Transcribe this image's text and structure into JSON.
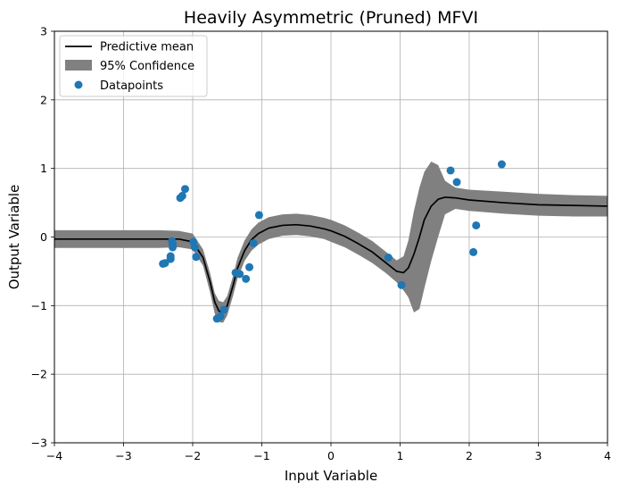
{
  "chart_data": {
    "type": "line",
    "title": "Heavily Asymmetric (Pruned) MFVI",
    "xlabel": "Input Variable",
    "ylabel": "Output Variable",
    "xlim": [
      -4,
      4
    ],
    "ylim": [
      -3,
      3
    ],
    "x_ticks": [
      -4,
      -3,
      -2,
      -1,
      0,
      1,
      2,
      3,
      4
    ],
    "y_ticks": [
      -3,
      -2,
      -1,
      0,
      1,
      2,
      3
    ],
    "x_tick_labels": [
      "−4",
      "−3",
      "−2",
      "−1",
      "0",
      "1",
      "2",
      "3",
      "4"
    ],
    "y_tick_labels": [
      "−3",
      "−2",
      "−1",
      "0",
      "1",
      "2",
      "3"
    ],
    "grid": true,
    "legend_position": "top-left",
    "legend": [
      "Predictive mean",
      "95% Confidence",
      "Datapoints"
    ],
    "series": [
      {
        "name": "Predictive mean",
        "kind": "line",
        "color": "#000000",
        "x": [
          -4.0,
          -3.0,
          -2.5,
          -2.2,
          -2.0,
          -1.85,
          -1.75,
          -1.68,
          -1.62,
          -1.56,
          -1.5,
          -1.42,
          -1.35,
          -1.25,
          -1.15,
          -1.05,
          -0.9,
          -0.7,
          -0.5,
          -0.3,
          -0.1,
          0.0,
          0.2,
          0.4,
          0.6,
          0.8,
          0.95,
          1.05,
          1.12,
          1.2,
          1.28,
          1.35,
          1.45,
          1.55,
          1.65,
          1.8,
          2.0,
          2.5,
          3.0,
          3.5,
          4.0
        ],
        "y": [
          -0.03,
          -0.03,
          -0.03,
          -0.03,
          -0.07,
          -0.3,
          -0.65,
          -0.95,
          -1.08,
          -1.1,
          -1.0,
          -0.72,
          -0.45,
          -0.2,
          -0.04,
          0.05,
          0.13,
          0.17,
          0.18,
          0.16,
          0.12,
          0.09,
          0.01,
          -0.1,
          -0.22,
          -0.38,
          -0.5,
          -0.52,
          -0.45,
          -0.25,
          0.0,
          0.25,
          0.45,
          0.55,
          0.58,
          0.57,
          0.54,
          0.5,
          0.47,
          0.46,
          0.45
        ]
      },
      {
        "name": "95% Confidence",
        "kind": "band",
        "color": "#808080",
        "x": [
          -4.0,
          -3.0,
          -2.5,
          -2.2,
          -2.0,
          -1.85,
          -1.75,
          -1.68,
          -1.62,
          -1.56,
          -1.5,
          -1.42,
          -1.35,
          -1.25,
          -1.15,
          -1.05,
          -0.9,
          -0.7,
          -0.5,
          -0.3,
          -0.1,
          0.0,
          0.2,
          0.4,
          0.6,
          0.8,
          0.95,
          1.05,
          1.12,
          1.2,
          1.28,
          1.35,
          1.45,
          1.55,
          1.65,
          1.8,
          2.0,
          2.5,
          3.0,
          3.5,
          4.0
        ],
        "lower": [
          -0.16,
          -0.16,
          -0.16,
          -0.15,
          -0.18,
          -0.42,
          -0.8,
          -1.12,
          -1.24,
          -1.25,
          -1.14,
          -0.87,
          -0.6,
          -0.35,
          -0.2,
          -0.11,
          -0.03,
          0.02,
          0.03,
          0.01,
          -0.03,
          -0.07,
          -0.15,
          -0.26,
          -0.38,
          -0.53,
          -0.66,
          -0.78,
          -0.88,
          -1.1,
          -1.05,
          -0.75,
          -0.35,
          0.0,
          0.33,
          0.41,
          0.38,
          0.34,
          0.31,
          0.3,
          0.3
        ],
        "upper": [
          0.1,
          0.1,
          0.1,
          0.09,
          0.05,
          -0.18,
          -0.52,
          -0.82,
          -0.93,
          -0.95,
          -0.86,
          -0.58,
          -0.3,
          -0.05,
          0.11,
          0.21,
          0.29,
          0.33,
          0.34,
          0.32,
          0.28,
          0.25,
          0.17,
          0.06,
          -0.06,
          -0.22,
          -0.34,
          -0.28,
          -0.05,
          0.38,
          0.72,
          0.95,
          1.1,
          1.05,
          0.82,
          0.72,
          0.69,
          0.66,
          0.63,
          0.61,
          0.6
        ]
      },
      {
        "name": "Datapoints",
        "kind": "scatter",
        "color": "#1f77b4",
        "x": [
          -2.43,
          -2.4,
          -2.32,
          -2.32,
          -2.3,
          -2.29,
          -2.29,
          -2.18,
          -2.15,
          -2.11,
          -1.99,
          -1.97,
          -1.95,
          -1.65,
          -1.6,
          -1.55,
          -1.38,
          -1.32,
          -1.23,
          -1.18,
          -1.12,
          -1.04,
          0.83,
          1.02,
          1.73,
          1.82,
          2.06,
          2.1,
          2.47
        ],
        "y": [
          -0.39,
          -0.38,
          -0.28,
          -0.32,
          -0.06,
          -0.1,
          -0.15,
          0.57,
          0.6,
          0.7,
          -0.07,
          -0.15,
          -0.29,
          -1.19,
          -1.16,
          -1.06,
          -0.52,
          -0.54,
          -0.61,
          -0.44,
          -0.09,
          0.32,
          -0.3,
          -0.7,
          0.97,
          0.8,
          -0.22,
          0.17,
          1.06
        ]
      }
    ]
  }
}
